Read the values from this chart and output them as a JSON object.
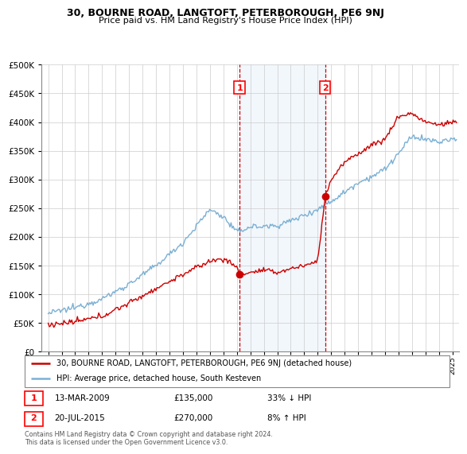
{
  "title": "30, BOURNE ROAD, LANGTOFT, PETERBOROUGH, PE6 9NJ",
  "subtitle": "Price paid vs. HM Land Registry's House Price Index (HPI)",
  "legend_line1": "30, BOURNE ROAD, LANGTOFT, PETERBOROUGH, PE6 9NJ (detached house)",
  "legend_line2": "HPI: Average price, detached house, South Kesteven",
  "marker1_date": "13-MAR-2009",
  "marker1_price": 135000,
  "marker1_label": "33% ↓ HPI",
  "marker2_date": "20-JUL-2015",
  "marker2_price": 270000,
  "marker2_label": "8% ↑ HPI",
  "footer": "Contains HM Land Registry data © Crown copyright and database right 2024.\nThis data is licensed under the Open Government Licence v3.0.",
  "red_color": "#cc0000",
  "blue_color": "#7ab0d4",
  "marker1_x": 2009.2,
  "marker2_x": 2015.55,
  "ylim_max": 500000,
  "xlim_start": 1994.5,
  "xlim_end": 2025.5
}
